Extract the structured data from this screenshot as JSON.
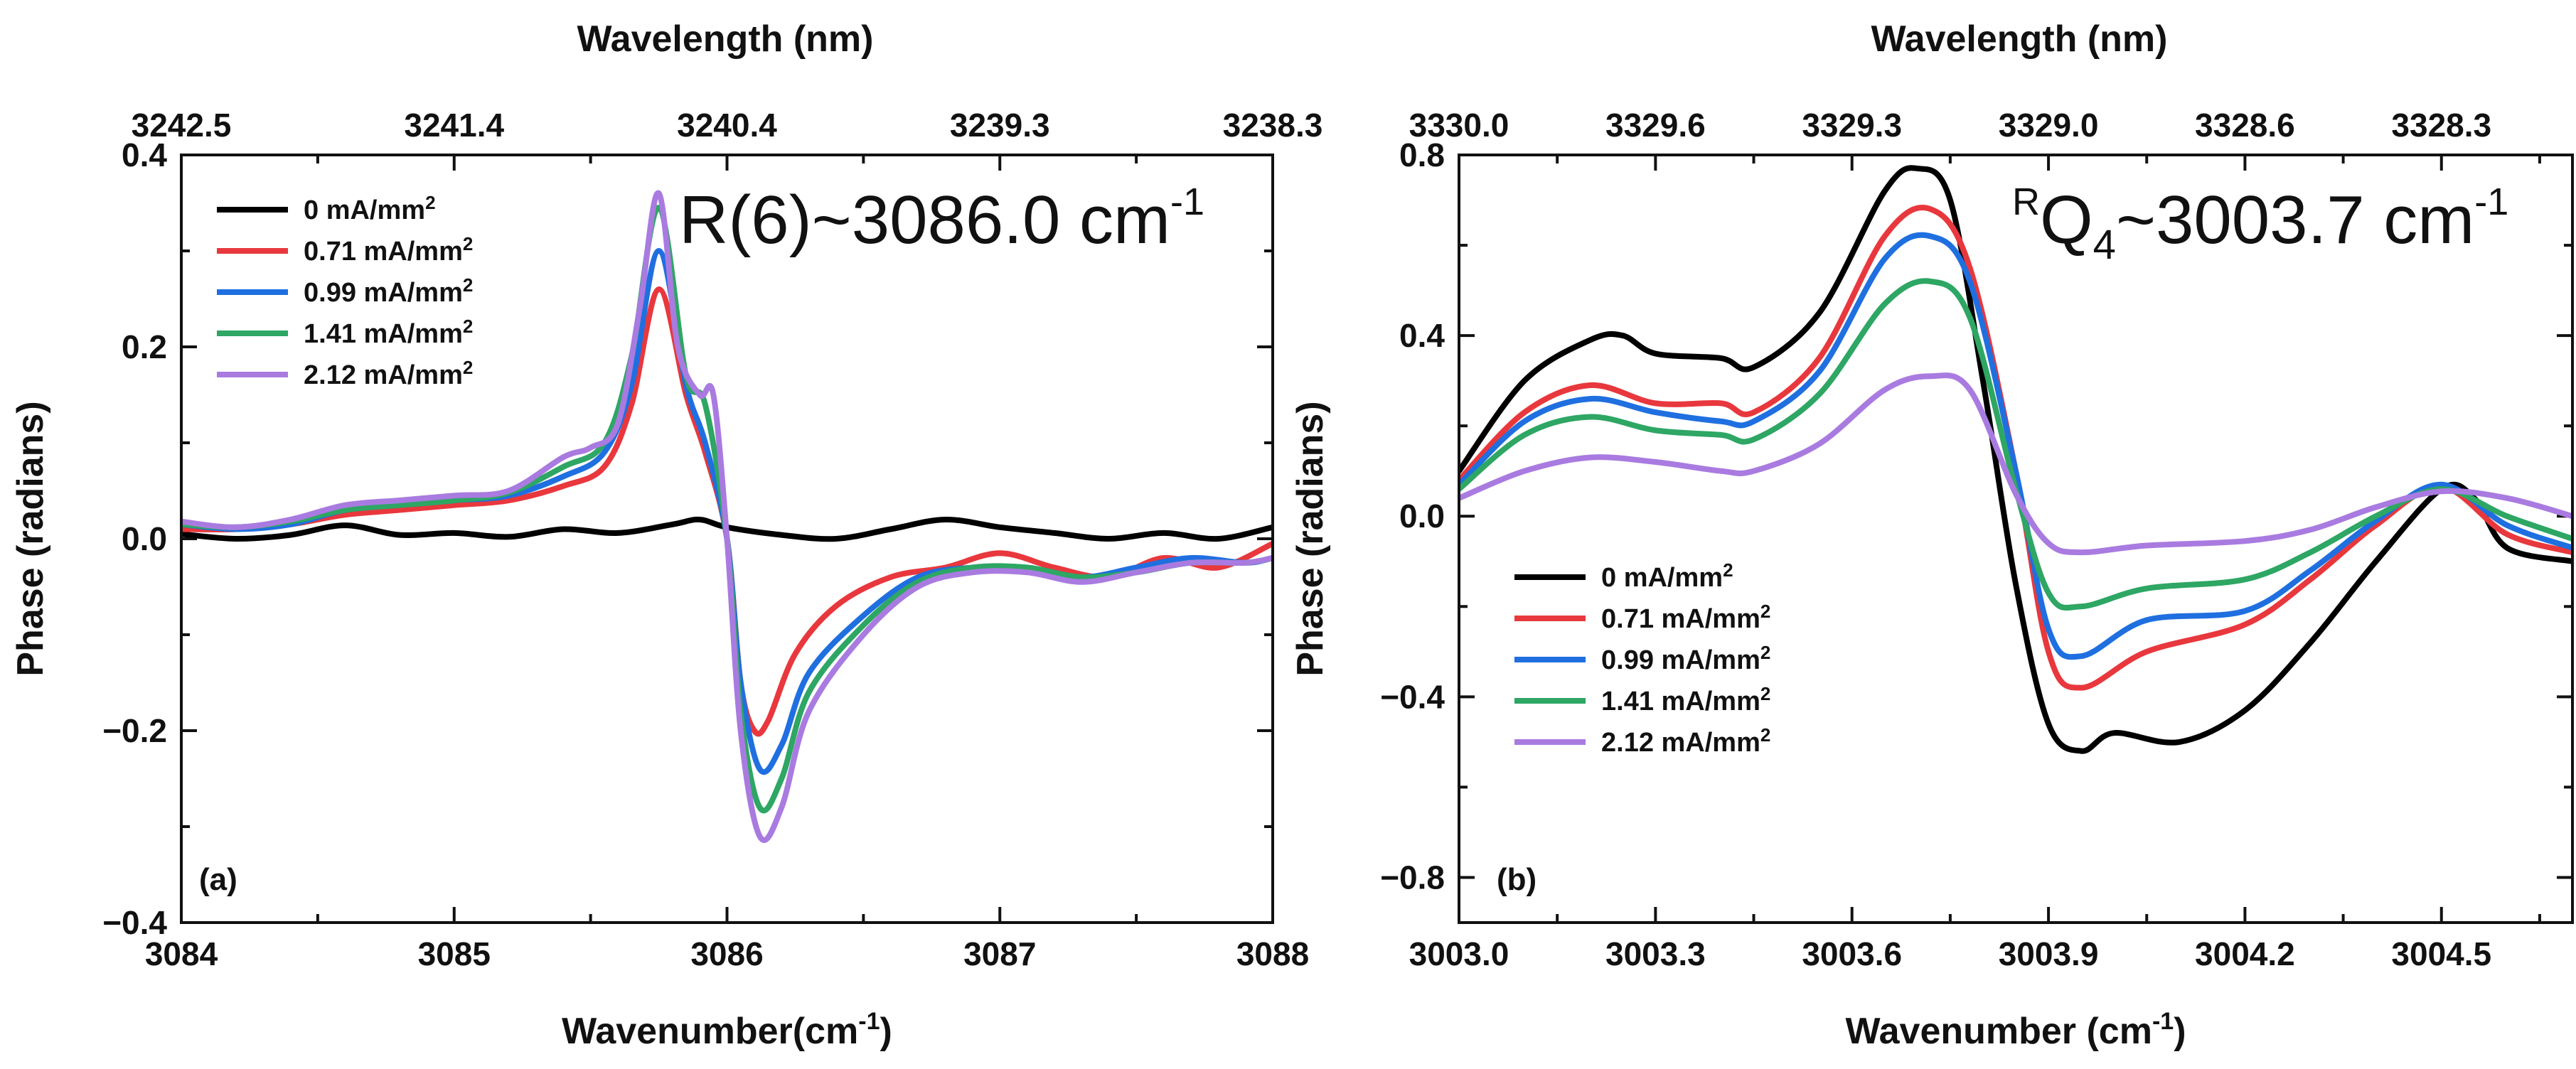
{
  "chart_data": [
    {
      "type": "line",
      "panel": "(a)",
      "annotation": {
        "main": "R(6)~3086.0 cm",
        "sup": "-1"
      },
      "xlabel": "Wavenumber(cm",
      "xlabel_sup": "-1",
      "xlabel_end": ")",
      "ylabel": "Phase (radians)",
      "top_xlabel": "Wavelength (nm)",
      "xlim": [
        3084,
        3088
      ],
      "ylim": [
        -0.4,
        0.4
      ],
      "xticks": [
        "3084",
        "3085",
        "3086",
        "3087",
        "3088"
      ],
      "yticks": [
        "−0.4",
        "−0.2",
        "0.0",
        "0.2",
        "0.4"
      ],
      "top_ticks": [
        "3242.5",
        "3241.4",
        "3240.4",
        "3239.3",
        "3238.3"
      ],
      "legend_position": "top-left",
      "series": [
        {
          "name": "0 mA/mm",
          "color": "#000000",
          "x": [
            3084.0,
            3084.2,
            3084.4,
            3084.6,
            3084.8,
            3085.0,
            3085.2,
            3085.4,
            3085.6,
            3085.8,
            3085.9,
            3086.0,
            3086.2,
            3086.4,
            3086.6,
            3086.8,
            3087.0,
            3087.2,
            3087.4,
            3087.6,
            3087.8,
            3088.0
          ],
          "y": [
            0.005,
            0.0,
            0.004,
            0.014,
            0.004,
            0.006,
            0.002,
            0.01,
            0.006,
            0.015,
            0.02,
            0.012,
            0.004,
            0.0,
            0.01,
            0.02,
            0.012,
            0.006,
            0.0,
            0.006,
            0.0,
            0.012
          ]
        },
        {
          "name": "0.71 mA/mm",
          "color": "#e8383d",
          "x": [
            3084.0,
            3084.2,
            3084.4,
            3084.6,
            3084.8,
            3085.0,
            3085.2,
            3085.4,
            3085.55,
            3085.65,
            3085.75,
            3085.85,
            3085.92,
            3086.0,
            3086.05,
            3086.1,
            3086.15,
            3086.25,
            3086.4,
            3086.6,
            3086.8,
            3087.0,
            3087.2,
            3087.4,
            3087.6,
            3087.8,
            3088.0
          ],
          "y": [
            0.01,
            0.01,
            0.015,
            0.025,
            0.03,
            0.035,
            0.04,
            0.055,
            0.075,
            0.14,
            0.26,
            0.15,
            0.09,
            0.0,
            -0.15,
            -0.2,
            -0.19,
            -0.12,
            -0.07,
            -0.04,
            -0.03,
            -0.015,
            -0.03,
            -0.04,
            -0.02,
            -0.03,
            -0.005
          ]
        },
        {
          "name": "0.99 mA/mm",
          "color": "#1f6fe0",
          "x": [
            3084.0,
            3084.2,
            3084.4,
            3084.6,
            3084.8,
            3085.0,
            3085.2,
            3085.4,
            3085.55,
            3085.65,
            3085.75,
            3085.85,
            3085.92,
            3086.0,
            3086.05,
            3086.12,
            3086.2,
            3086.3,
            3086.5,
            3086.7,
            3086.9,
            3087.1,
            3087.3,
            3087.5,
            3087.7,
            3087.9,
            3088.0
          ],
          "y": [
            0.015,
            0.01,
            0.015,
            0.03,
            0.035,
            0.04,
            0.045,
            0.065,
            0.09,
            0.16,
            0.3,
            0.16,
            0.1,
            0.0,
            -0.15,
            -0.24,
            -0.215,
            -0.14,
            -0.08,
            -0.04,
            -0.03,
            -0.03,
            -0.04,
            -0.03,
            -0.02,
            -0.025,
            -0.02
          ]
        },
        {
          "name": "1.41 mA/mm",
          "color": "#2ea664",
          "x": [
            3084.0,
            3084.2,
            3084.4,
            3084.6,
            3084.8,
            3085.0,
            3085.2,
            3085.4,
            3085.55,
            3085.65,
            3085.75,
            3085.85,
            3085.92,
            3086.0,
            3086.05,
            3086.12,
            3086.2,
            3086.3,
            3086.5,
            3086.7,
            3086.9,
            3087.1,
            3087.3,
            3087.5,
            3087.7,
            3087.9,
            3088.0
          ],
          "y": [
            0.015,
            0.012,
            0.018,
            0.03,
            0.035,
            0.04,
            0.048,
            0.075,
            0.1,
            0.19,
            0.345,
            0.17,
            0.14,
            0.0,
            -0.18,
            -0.28,
            -0.25,
            -0.16,
            -0.09,
            -0.045,
            -0.03,
            -0.03,
            -0.04,
            -0.035,
            -0.025,
            -0.025,
            -0.02
          ]
        },
        {
          "name": "2.12 mA/mm",
          "color": "#a97be0",
          "x": [
            3084.0,
            3084.2,
            3084.4,
            3084.6,
            3084.8,
            3085.0,
            3085.2,
            3085.4,
            3085.5,
            3085.6,
            3085.68,
            3085.75,
            3085.82,
            3085.9,
            3085.95,
            3086.0,
            3086.05,
            3086.12,
            3086.2,
            3086.3,
            3086.5,
            3086.7,
            3086.9,
            3087.1,
            3087.3,
            3087.5,
            3087.7,
            3087.9,
            3088.0
          ],
          "y": [
            0.018,
            0.012,
            0.02,
            0.035,
            0.04,
            0.045,
            0.05,
            0.085,
            0.095,
            0.12,
            0.24,
            0.36,
            0.2,
            0.15,
            0.15,
            0.0,
            -0.2,
            -0.31,
            -0.28,
            -0.18,
            -0.1,
            -0.05,
            -0.035,
            -0.035,
            -0.045,
            -0.035,
            -0.025,
            -0.025,
            -0.02
          ]
        }
      ]
    },
    {
      "type": "line",
      "panel": "(b)",
      "annotation": {
        "pre_sup": "R",
        "main": "Q",
        "sub": "4",
        "rest": "~3003.7 cm",
        "sup": "-1"
      },
      "xlabel": "Wavenumber (cm",
      "xlabel_sup": "-1",
      "xlabel_end": ")",
      "ylabel": "Phase (radians)",
      "top_xlabel": "Wavelength (nm)",
      "xlim": [
        3003.0,
        3004.7
      ],
      "ylim": [
        -0.9,
        0.8
      ],
      "xticks": [
        "3003.0",
        "3003.3",
        "3003.6",
        "3003.9",
        "3004.2",
        "3004.5"
      ],
      "xtick_values": [
        3003.0,
        3003.3,
        3003.6,
        3003.9,
        3004.2,
        3004.5
      ],
      "yticks": [
        "−0.8",
        "−0.4",
        "0.0",
        "0.4",
        "0.8"
      ],
      "ytick_values": [
        -0.8,
        -0.4,
        0.0,
        0.4,
        0.8
      ],
      "top_ticks": [
        "3330.0",
        "3329.6",
        "3329.3",
        "3329.0",
        "3328.6",
        "3328.3"
      ],
      "legend_position": "bottom-left",
      "series": [
        {
          "name": "0 mA/mm",
          "color": "#000000",
          "x": [
            3003.0,
            3003.1,
            3003.2,
            3003.25,
            3003.3,
            3003.4,
            3003.45,
            3003.55,
            3003.65,
            3003.7,
            3003.75,
            3003.8,
            3003.85,
            3003.9,
            3003.95,
            3004.0,
            3004.1,
            3004.2,
            3004.3,
            3004.4,
            3004.5,
            3004.55,
            3004.6,
            3004.7
          ],
          "y": [
            0.1,
            0.3,
            0.39,
            0.4,
            0.36,
            0.35,
            0.33,
            0.45,
            0.72,
            0.77,
            0.7,
            0.3,
            -0.15,
            -0.46,
            -0.52,
            -0.48,
            -0.5,
            -0.43,
            -0.28,
            -0.1,
            0.06,
            0.04,
            -0.07,
            -0.1
          ]
        },
        {
          "name": "0.71 mA/mm",
          "color": "#e8383d",
          "x": [
            3003.0,
            3003.1,
            3003.2,
            3003.3,
            3003.4,
            3003.45,
            3003.55,
            3003.65,
            3003.72,
            3003.78,
            3003.85,
            3003.9,
            3003.95,
            3004.05,
            3004.2,
            3004.3,
            3004.4,
            3004.5,
            3004.6,
            3004.7
          ],
          "y": [
            0.08,
            0.23,
            0.29,
            0.25,
            0.25,
            0.23,
            0.35,
            0.62,
            0.68,
            0.55,
            0.1,
            -0.3,
            -0.38,
            -0.3,
            -0.24,
            -0.14,
            -0.02,
            0.065,
            -0.04,
            -0.08
          ]
        },
        {
          "name": "0.99 mA/mm",
          "color": "#1f6fe0",
          "x": [
            3003.0,
            3003.1,
            3003.2,
            3003.3,
            3003.4,
            3003.45,
            3003.55,
            3003.65,
            3003.72,
            3003.78,
            3003.85,
            3003.9,
            3003.95,
            3004.05,
            3004.2,
            3004.3,
            3004.4,
            3004.5,
            3004.6,
            3004.7
          ],
          "y": [
            0.07,
            0.21,
            0.26,
            0.23,
            0.21,
            0.21,
            0.32,
            0.57,
            0.62,
            0.52,
            0.1,
            -0.25,
            -0.31,
            -0.23,
            -0.21,
            -0.12,
            -0.01,
            0.07,
            -0.02,
            -0.07
          ]
        },
        {
          "name": "1.41 mA/mm",
          "color": "#2ea664",
          "x": [
            3003.0,
            3003.1,
            3003.2,
            3003.3,
            3003.4,
            3003.45,
            3003.55,
            3003.65,
            3003.72,
            3003.78,
            3003.85,
            3003.9,
            3003.95,
            3004.05,
            3004.2,
            3004.3,
            3004.4,
            3004.5,
            3004.6,
            3004.7
          ],
          "y": [
            0.06,
            0.18,
            0.22,
            0.19,
            0.18,
            0.17,
            0.27,
            0.47,
            0.52,
            0.44,
            0.06,
            -0.17,
            -0.2,
            -0.16,
            -0.14,
            -0.08,
            0.0,
            0.06,
            0.0,
            -0.05
          ]
        },
        {
          "name": "2.12 mA/mm",
          "color": "#a97be0",
          "x": [
            3003.0,
            3003.1,
            3003.2,
            3003.3,
            3003.4,
            3003.45,
            3003.55,
            3003.65,
            3003.72,
            3003.78,
            3003.85,
            3003.9,
            3003.95,
            3004.05,
            3004.2,
            3004.3,
            3004.4,
            3004.5,
            3004.6,
            3004.7
          ],
          "y": [
            0.04,
            0.1,
            0.13,
            0.12,
            0.1,
            0.1,
            0.16,
            0.28,
            0.31,
            0.28,
            0.05,
            -0.06,
            -0.08,
            -0.065,
            -0.055,
            -0.03,
            0.02,
            0.055,
            0.04,
            0.0
          ]
        }
      ]
    }
  ],
  "legend_unit_sup": "2"
}
